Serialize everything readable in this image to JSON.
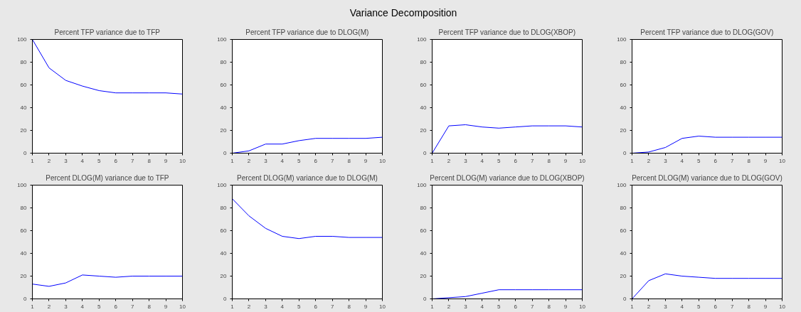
{
  "chart_data": [
    {
      "type": "line",
      "title": "Percent TFP variance due to TFP",
      "annotations": [
        "Variance Decomposition"
      ],
      "x": [
        1,
        2,
        3,
        4,
        5,
        6,
        7,
        8,
        9,
        10
      ],
      "series": [
        {
          "color": "#0000ff",
          "values": [
            100,
            75,
            64,
            59,
            55,
            53,
            53,
            53,
            53,
            52
          ]
        }
      ],
      "xlim": [
        1,
        10
      ],
      "xticks": [
        1,
        2,
        3,
        4,
        5,
        6,
        7,
        8,
        9,
        10
      ],
      "ylim": [
        0,
        100
      ],
      "yticks": [
        0,
        20,
        40,
        60,
        80,
        100
      ],
      "grid": false
    },
    {
      "type": "line",
      "title": "Percent TFP variance due to DLOG(M)",
      "x": [
        1,
        2,
        3,
        4,
        5,
        6,
        7,
        8,
        9,
        10
      ],
      "series": [
        {
          "color": "#0000ff",
          "values": [
            0,
            2,
            8,
            8,
            11,
            13,
            13,
            13,
            13,
            14
          ]
        }
      ],
      "xlim": [
        1,
        10
      ],
      "xticks": [
        1,
        2,
        3,
        4,
        5,
        6,
        7,
        8,
        9,
        10
      ],
      "ylim": [
        0,
        100
      ],
      "yticks": [
        0,
        20,
        40,
        60,
        80,
        100
      ],
      "grid": false
    },
    {
      "type": "line",
      "title": "Percent TFP variance due to DLOG(XBOP)",
      "x": [
        1,
        2,
        3,
        4,
        5,
        6,
        7,
        8,
        9,
        10
      ],
      "series": [
        {
          "color": "#0000ff",
          "values": [
            0,
            24,
            25,
            23,
            22,
            23,
            24,
            24,
            24,
            23
          ]
        }
      ],
      "xlim": [
        1,
        10
      ],
      "xticks": [
        1,
        2,
        3,
        4,
        5,
        6,
        7,
        8,
        9,
        10
      ],
      "ylim": [
        0,
        100
      ],
      "yticks": [
        0,
        20,
        40,
        60,
        80,
        100
      ],
      "grid": false
    },
    {
      "type": "line",
      "title": "Percent TFP variance due to DLOG(GOV)",
      "x": [
        1,
        2,
        3,
        4,
        5,
        6,
        7,
        8,
        9,
        10
      ],
      "series": [
        {
          "color": "#0000ff",
          "values": [
            0,
            1,
            5,
            13,
            15,
            14,
            14,
            14,
            14,
            14
          ]
        }
      ],
      "xlim": [
        1,
        10
      ],
      "xticks": [
        1,
        2,
        3,
        4,
        5,
        6,
        7,
        8,
        9,
        10
      ],
      "ylim": [
        0,
        100
      ],
      "yticks": [
        0,
        20,
        40,
        60,
        80,
        100
      ],
      "grid": false
    },
    {
      "type": "line",
      "title": "Percent DLOG(M) variance due to TFP",
      "x": [
        1,
        2,
        3,
        4,
        5,
        6,
        7,
        8,
        9,
        10
      ],
      "series": [
        {
          "color": "#0000ff",
          "values": [
            13,
            11,
            14,
            21,
            20,
            19,
            20,
            20,
            20,
            20
          ]
        }
      ],
      "xlim": [
        1,
        10
      ],
      "xticks": [
        1,
        2,
        3,
        4,
        5,
        6,
        7,
        8,
        9,
        10
      ],
      "ylim": [
        0,
        100
      ],
      "yticks": [
        0,
        20,
        40,
        60,
        80,
        100
      ],
      "grid": false
    },
    {
      "type": "line",
      "title": "Percent DLOG(M) variance due to DLOG(M)",
      "x": [
        1,
        2,
        3,
        4,
        5,
        6,
        7,
        8,
        9,
        10
      ],
      "series": [
        {
          "color": "#0000ff",
          "values": [
            88,
            73,
            62,
            55,
            53,
            55,
            55,
            54,
            54,
            54
          ]
        }
      ],
      "xlim": [
        1,
        10
      ],
      "xticks": [
        1,
        2,
        3,
        4,
        5,
        6,
        7,
        8,
        9,
        10
      ],
      "ylim": [
        0,
        100
      ],
      "yticks": [
        0,
        20,
        40,
        60,
        80,
        100
      ],
      "grid": false
    },
    {
      "type": "line",
      "title": "Percent DLOG(M) variance due to DLOG(XBOP)",
      "x": [
        1,
        2,
        3,
        4,
        5,
        6,
        7,
        8,
        9,
        10
      ],
      "series": [
        {
          "color": "#0000ff",
          "values": [
            0,
            1,
            2,
            5,
            8,
            8,
            8,
            8,
            8,
            8
          ]
        }
      ],
      "xlim": [
        1,
        10
      ],
      "xticks": [
        1,
        2,
        3,
        4,
        5,
        6,
        7,
        8,
        9,
        10
      ],
      "ylim": [
        0,
        100
      ],
      "yticks": [
        0,
        20,
        40,
        60,
        80,
        100
      ],
      "grid": false
    },
    {
      "type": "line",
      "title": "Percent DLOG(M) variance due to DLOG(GOV)",
      "x": [
        1,
        2,
        3,
        4,
        5,
        6,
        7,
        8,
        9,
        10
      ],
      "series": [
        {
          "color": "#0000ff",
          "values": [
            0,
            16,
            22,
            20,
            19,
            18,
            18,
            18,
            18,
            18
          ]
        }
      ],
      "xlim": [
        1,
        10
      ],
      "xticks": [
        1,
        2,
        3,
        4,
        5,
        6,
        7,
        8,
        9,
        10
      ],
      "ylim": [
        0,
        100
      ],
      "yticks": [
        0,
        20,
        40,
        60,
        80,
        100
      ],
      "grid": false
    }
  ]
}
